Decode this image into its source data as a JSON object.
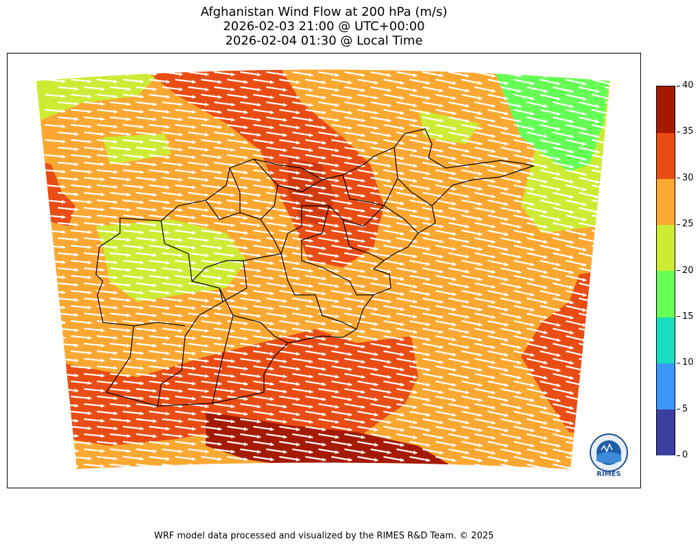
{
  "title": {
    "line1": "Afghanistan Wind Flow at 200 hPa (m/s)",
    "line2": "2026-02-03 21:00 @ UTC+00:00",
    "line3": "2026-02-04 01:30 @ Local Time"
  },
  "colorbar": {
    "levels": [
      {
        "min": 0,
        "max": 5,
        "color": "#3b3fa0"
      },
      {
        "min": 5,
        "max": 10,
        "color": "#3d96ff"
      },
      {
        "min": 10,
        "max": 15,
        "color": "#18dcc0"
      },
      {
        "min": 15,
        "max": 20,
        "color": "#66ff55"
      },
      {
        "min": 20,
        "max": 25,
        "color": "#cdeb34"
      },
      {
        "min": 25,
        "max": 30,
        "color": "#fba832"
      },
      {
        "min": 30,
        "max": 35,
        "color": "#e94d14"
      },
      {
        "min": 35,
        "max": 40,
        "color": "#a51a02"
      }
    ],
    "tick_labels": [
      "0",
      "5",
      "10",
      "15",
      "20",
      "25",
      "30",
      "35",
      "40"
    ]
  },
  "map": {
    "country": "Afghanistan",
    "pressure_level": "200 hPa",
    "variable": "wind speed (m/s)",
    "wind_direction": "west-northwest (streamlines toward east-southeast)",
    "arrow_color": "#ffffff",
    "boundary_color": "#000000"
  },
  "logo": {
    "text": "RIMES"
  },
  "footer": "WRF model data processed and visualized by the RIMES R&D Team. © 2025"
}
